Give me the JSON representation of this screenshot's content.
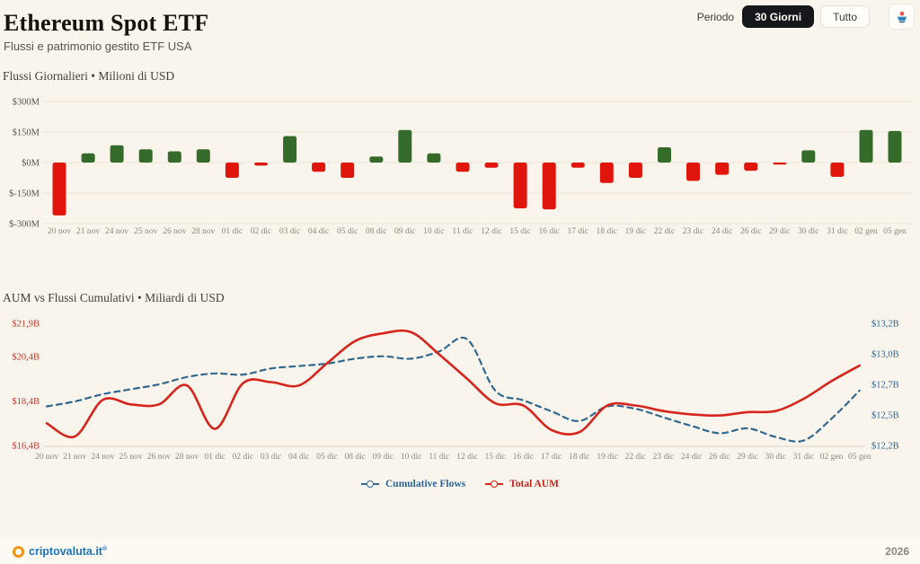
{
  "header": {
    "title": "Ethereum Spot ETF",
    "subtitle": "Flussi e patrimonio gestito ETF USA"
  },
  "controls": {
    "period_label": "Periodo",
    "buttons": [
      {
        "label": "30 Giorni",
        "active": true
      },
      {
        "label": "Tutto",
        "active": false
      }
    ],
    "icon": "download-logo-icon"
  },
  "colors": {
    "background": "#FAF5EC",
    "bar_green": "#356B2A",
    "bar_red": "#E0160C",
    "line_red": "#D6251D",
    "line_blue": "#33688E",
    "grid": "#EAE4D6",
    "axis_line": "#DFD8C8",
    "left_axis_text": "#C2362B",
    "right_axis_text": "#2A6496",
    "button_active_bg": "#15171A",
    "brand_blue": "#1E73BE",
    "brand_orange": "#F39213"
  },
  "chart_data": [
    {
      "type": "bar",
      "title": "Flussi Giornalieri • Milioni di USD",
      "ylabel": "Milioni di USD",
      "ylim": [
        -300,
        300
      ],
      "grid": true,
      "categories": [
        "20 nov",
        "21 nov",
        "24 nov",
        "25 nov",
        "26 nov",
        "28 nov",
        "01 dic",
        "02 dic",
        "03 dic",
        "04 dic",
        "05 dic",
        "08 dic",
        "09 dic",
        "10 dic",
        "11 dic",
        "12 dic",
        "15 dic",
        "16 dic",
        "17 dic",
        "18 dic",
        "19 dic",
        "22 dic",
        "23 dic",
        "24 dic",
        "26 dic",
        "29 dic",
        "30 dic",
        "31 dic",
        "02 gen",
        "05 gen"
      ],
      "values": [
        -260,
        45,
        85,
        65,
        55,
        65,
        -75,
        -15,
        130,
        -45,
        -75,
        30,
        160,
        45,
        -45,
        -25,
        -225,
        -230,
        -25,
        -100,
        -75,
        75,
        -90,
        -60,
        -40,
        -10,
        60,
        -70,
        160,
        155
      ],
      "y_ticks": [
        {
          "label": "$300M",
          "value": 300
        },
        {
          "label": "$150M",
          "value": 150
        },
        {
          "label": "$0M",
          "value": 0
        },
        {
          "label": "$-150M",
          "value": -150
        },
        {
          "label": "$-300M",
          "value": -300
        }
      ]
    },
    {
      "type": "line",
      "title": "AUM vs Flussi Cumulativi • Miliardi di USD",
      "ylabel_left": "Total AUM (Miliardi di USD)",
      "ylabel_right": "Cumulative Flows (Miliardi di USD)",
      "left_range": [
        16.4,
        21.9
      ],
      "right_range": [
        12.2,
        13.2
      ],
      "legend_position": "bottom",
      "categories": [
        "20 nov",
        "21 nov",
        "24 nov",
        "25 nov",
        "26 nov",
        "28 nov",
        "01 dic",
        "02 dic",
        "03 dic",
        "04 dic",
        "05 dic",
        "08 dic",
        "09 dic",
        "10 dic",
        "11 dic",
        "12 dic",
        "15 dic",
        "16 dic",
        "17 dic",
        "18 dic",
        "19 dic",
        "22 dic",
        "23 dic",
        "24 dic",
        "26 dic",
        "29 dic",
        "30 dic",
        "31 dic",
        "02 gen",
        "05 gen"
      ],
      "series": [
        {
          "name": "Cumulative Flows",
          "axis": "right",
          "style": "dashed",
          "values": [
            12.52,
            12.56,
            12.62,
            12.66,
            12.7,
            12.76,
            12.79,
            12.78,
            12.83,
            12.85,
            12.87,
            12.91,
            12.93,
            12.91,
            12.97,
            13.07,
            12.65,
            12.57,
            12.48,
            12.4,
            12.52,
            12.5,
            12.43,
            12.36,
            12.3,
            12.34,
            12.27,
            12.24,
            12.42,
            12.65
          ]
        },
        {
          "name": "Total AUM",
          "axis": "left",
          "style": "solid",
          "values": [
            17.4,
            16.8,
            18.45,
            18.25,
            18.25,
            19.1,
            17.15,
            19.2,
            19.25,
            19.1,
            20.1,
            21.1,
            21.45,
            21.5,
            20.5,
            19.4,
            18.3,
            18.2,
            17.1,
            17.0,
            18.2,
            18.2,
            17.95,
            17.8,
            17.75,
            17.9,
            17.95,
            18.5,
            19.3,
            20.0
          ]
        }
      ],
      "left_ticks": [
        {
          "label": "$21,9B",
          "value": 21.9
        },
        {
          "label": "$20,4B",
          "value": 20.4
        },
        {
          "label": "$18,4B",
          "value": 18.4
        },
        {
          "label": "$16,4B",
          "value": 16.4
        }
      ],
      "right_ticks": [
        {
          "label": "$13,2B",
          "value": 13.2
        },
        {
          "label": "$13,0B",
          "value": 12.95
        },
        {
          "label": "$12,7B",
          "value": 12.7
        },
        {
          "label": "$12,5B",
          "value": 12.45
        },
        {
          "label": "$12,2B",
          "value": 12.2
        }
      ]
    }
  ],
  "footer": {
    "brand": "criptovaluta.it",
    "brand_mark": "®",
    "year": "2026"
  }
}
